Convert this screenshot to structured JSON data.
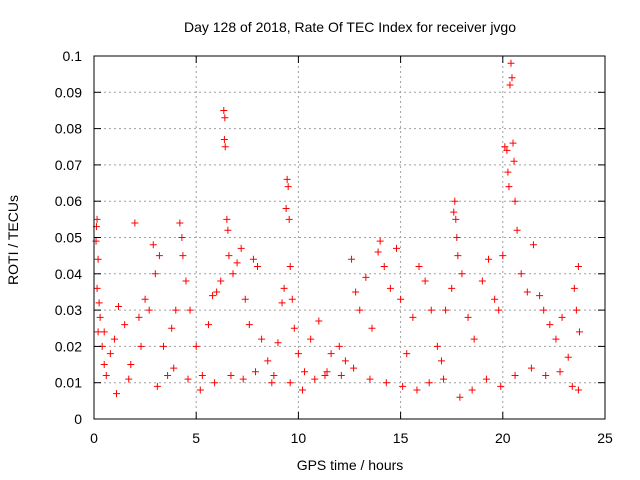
{
  "chart_data": {
    "type": "scatter",
    "title": "Day 128 of 2018, Rate Of TEC Index for receiver jvgo",
    "xlabel": "GPS time / hours",
    "ylabel": "ROTI / TECUs",
    "xlim": [
      0,
      25
    ],
    "ylim": [
      0,
      0.1
    ],
    "xticks": [
      0,
      5,
      10,
      15,
      20,
      25
    ],
    "xtick_labels": [
      "0",
      "5",
      "10",
      "15",
      "20",
      "25"
    ],
    "yticks": [
      0,
      0.01,
      0.02,
      0.03,
      0.04,
      0.05,
      0.06,
      0.07,
      0.08,
      0.09,
      0.1
    ],
    "ytick_labels": [
      "0",
      "0.01",
      "0.02",
      "0.03",
      "0.04",
      "0.05",
      "0.06",
      "0.07",
      "0.08",
      "0.09",
      "0.1"
    ],
    "grid": true,
    "marker": "plus",
    "colors": {
      "series": "#ff0000",
      "grid": "#a0a0a0",
      "axes": "#000000"
    },
    "series": [
      {
        "name": "ROTI",
        "points": [
          [
            0.1,
            0.049
          ],
          [
            0.12,
            0.053
          ],
          [
            0.15,
            0.055
          ],
          [
            0.2,
            0.044
          ],
          [
            0.15,
            0.036
          ],
          [
            0.25,
            0.032
          ],
          [
            0.3,
            0.028
          ],
          [
            0.2,
            0.024
          ],
          [
            0.4,
            0.02
          ],
          [
            0.5,
            0.015
          ],
          [
            0.6,
            0.012
          ],
          [
            0.8,
            0.018
          ],
          [
            1.0,
            0.022
          ],
          [
            1.2,
            0.031
          ],
          [
            1.5,
            0.026
          ],
          [
            1.8,
            0.015
          ],
          [
            2.0,
            0.054
          ],
          [
            2.2,
            0.028
          ],
          [
            2.5,
            0.033
          ],
          [
            2.7,
            0.03
          ],
          [
            2.9,
            0.048
          ],
          [
            3.0,
            0.04
          ],
          [
            3.2,
            0.045
          ],
          [
            3.4,
            0.02
          ],
          [
            3.6,
            0.012
          ],
          [
            3.8,
            0.025
          ],
          [
            4.0,
            0.03
          ],
          [
            4.2,
            0.054
          ],
          [
            4.3,
            0.05
          ],
          [
            4.35,
            0.045
          ],
          [
            4.5,
            0.038
          ],
          [
            4.7,
            0.03
          ],
          [
            5.0,
            0.02
          ],
          [
            5.3,
            0.012
          ],
          [
            5.6,
            0.026
          ],
          [
            5.8,
            0.034
          ],
          [
            6.0,
            0.035
          ],
          [
            6.2,
            0.038
          ],
          [
            6.35,
            0.085
          ],
          [
            6.4,
            0.083
          ],
          [
            6.38,
            0.077
          ],
          [
            6.42,
            0.075
          ],
          [
            6.5,
            0.055
          ],
          [
            6.55,
            0.052
          ],
          [
            6.6,
            0.045
          ],
          [
            6.8,
            0.04
          ],
          [
            7.0,
            0.043
          ],
          [
            7.2,
            0.047
          ],
          [
            7.4,
            0.033
          ],
          [
            7.6,
            0.026
          ],
          [
            7.8,
            0.044
          ],
          [
            8.0,
            0.042
          ],
          [
            8.2,
            0.022
          ],
          [
            8.5,
            0.016
          ],
          [
            8.8,
            0.012
          ],
          [
            9.0,
            0.021
          ],
          [
            9.2,
            0.032
          ],
          [
            9.3,
            0.036
          ],
          [
            9.4,
            0.058
          ],
          [
            9.45,
            0.066
          ],
          [
            9.5,
            0.064
          ],
          [
            9.55,
            0.055
          ],
          [
            9.6,
            0.042
          ],
          [
            9.7,
            0.033
          ],
          [
            9.8,
            0.025
          ],
          [
            10.0,
            0.018
          ],
          [
            10.3,
            0.013
          ],
          [
            10.6,
            0.022
          ],
          [
            11.0,
            0.027
          ],
          [
            11.3,
            0.012
          ],
          [
            11.6,
            0.018
          ],
          [
            12.0,
            0.02
          ],
          [
            12.3,
            0.016
          ],
          [
            12.6,
            0.044
          ],
          [
            12.8,
            0.035
          ],
          [
            13.0,
            0.03
          ],
          [
            13.3,
            0.039
          ],
          [
            13.6,
            0.025
          ],
          [
            13.9,
            0.046
          ],
          [
            14.0,
            0.049
          ],
          [
            14.2,
            0.042
          ],
          [
            14.5,
            0.036
          ],
          [
            14.8,
            0.047
          ],
          [
            15.0,
            0.033
          ],
          [
            15.3,
            0.018
          ],
          [
            15.6,
            0.028
          ],
          [
            15.9,
            0.042
          ],
          [
            16.2,
            0.038
          ],
          [
            16.5,
            0.03
          ],
          [
            16.8,
            0.02
          ],
          [
            17.0,
            0.016
          ],
          [
            17.2,
            0.03
          ],
          [
            17.5,
            0.036
          ],
          [
            17.6,
            0.057
          ],
          [
            17.65,
            0.06
          ],
          [
            17.7,
            0.055
          ],
          [
            17.75,
            0.05
          ],
          [
            17.8,
            0.045
          ],
          [
            18.0,
            0.04
          ],
          [
            18.3,
            0.028
          ],
          [
            18.6,
            0.022
          ],
          [
            19.0,
            0.038
          ],
          [
            19.3,
            0.044
          ],
          [
            19.6,
            0.033
          ],
          [
            19.8,
            0.03
          ],
          [
            20.0,
            0.045
          ],
          [
            20.1,
            0.075
          ],
          [
            20.2,
            0.074
          ],
          [
            20.25,
            0.068
          ],
          [
            20.3,
            0.064
          ],
          [
            20.35,
            0.092
          ],
          [
            20.4,
            0.098
          ],
          [
            20.45,
            0.094
          ],
          [
            20.5,
            0.076
          ],
          [
            20.55,
            0.071
          ],
          [
            20.6,
            0.06
          ],
          [
            20.7,
            0.052
          ],
          [
            20.9,
            0.04
          ],
          [
            21.2,
            0.035
          ],
          [
            21.5,
            0.048
          ],
          [
            21.8,
            0.034
          ],
          [
            22.0,
            0.03
          ],
          [
            22.3,
            0.026
          ],
          [
            22.6,
            0.022
          ],
          [
            22.9,
            0.028
          ],
          [
            23.2,
            0.017
          ],
          [
            23.5,
            0.036
          ],
          [
            23.6,
            0.03
          ],
          [
            23.7,
            0.042
          ],
          [
            23.75,
            0.024
          ],
          [
            0.5,
            0.024
          ],
          [
            1.1,
            0.007
          ],
          [
            1.7,
            0.011
          ],
          [
            2.3,
            0.02
          ],
          [
            3.1,
            0.009
          ],
          [
            3.9,
            0.014
          ],
          [
            4.6,
            0.011
          ],
          [
            5.2,
            0.008
          ],
          [
            5.9,
            0.01
          ],
          [
            6.7,
            0.012
          ],
          [
            7.3,
            0.011
          ],
          [
            7.9,
            0.013
          ],
          [
            8.7,
            0.01
          ],
          [
            9.6,
            0.01
          ],
          [
            10.2,
            0.008
          ],
          [
            10.8,
            0.011
          ],
          [
            11.4,
            0.013
          ],
          [
            12.1,
            0.012
          ],
          [
            12.7,
            0.014
          ],
          [
            13.5,
            0.011
          ],
          [
            14.3,
            0.01
          ],
          [
            15.1,
            0.009
          ],
          [
            15.8,
            0.008
          ],
          [
            16.4,
            0.01
          ],
          [
            17.1,
            0.011
          ],
          [
            17.9,
            0.006
          ],
          [
            18.5,
            0.008
          ],
          [
            19.2,
            0.011
          ],
          [
            19.9,
            0.009
          ],
          [
            20.6,
            0.012
          ],
          [
            21.4,
            0.014
          ],
          [
            22.1,
            0.012
          ],
          [
            22.8,
            0.013
          ],
          [
            23.4,
            0.009
          ],
          [
            23.7,
            0.008
          ]
        ]
      }
    ]
  }
}
